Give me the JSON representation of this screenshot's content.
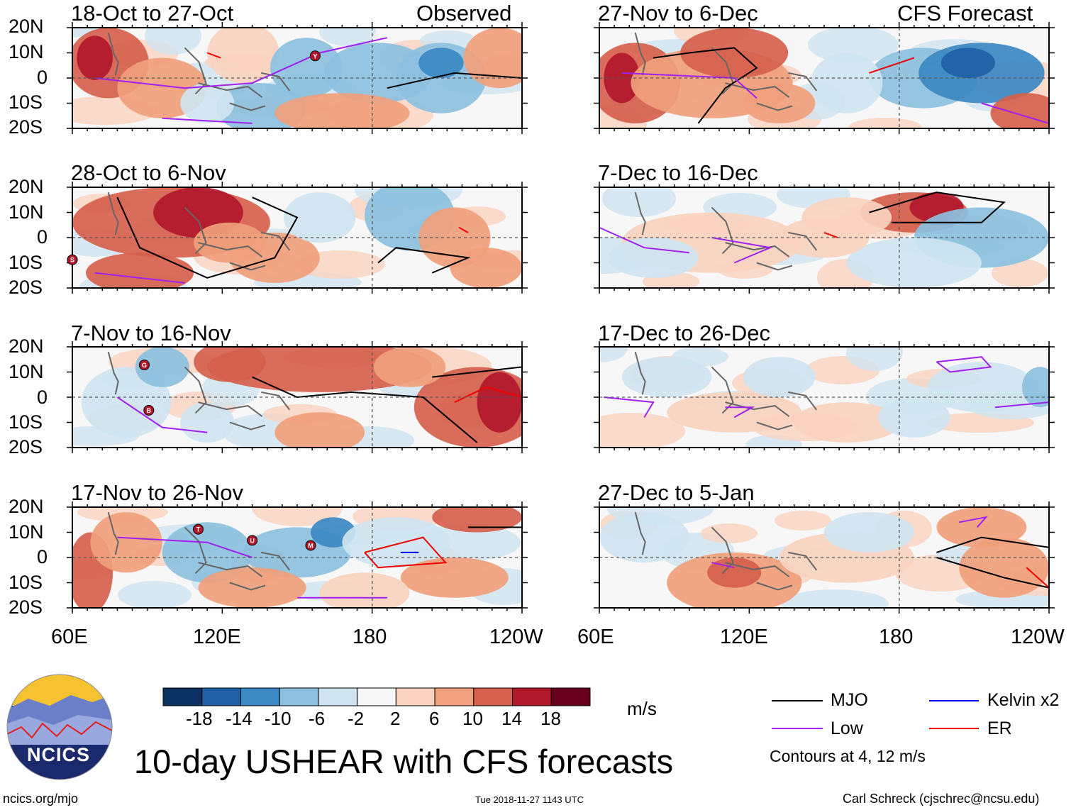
{
  "title": "10-day USHEAR with CFS forecasts",
  "observed_label": "Observed",
  "forecast_label": "CFS Forecast",
  "units": "m/s",
  "contour_note": "Contours at 4, 12 m/s",
  "footer": {
    "left": "ncics.org/mjo",
    "center": "Tue 2018-11-27 1143 UTC",
    "right": "Carl Schreck (cjschrec@ncsu.edu)",
    "logo_text": "NCICS"
  },
  "colors": {
    "mjo": "#000000",
    "low": "#a020f0",
    "kelvin": "#0000ee",
    "er": "#ee0000",
    "coast": "#666666"
  },
  "chart_data": {
    "type": "heatmap",
    "variable": "USHEAR",
    "x_ticks": [
      "60E",
      "120E",
      "180",
      "120W"
    ],
    "y_ticks": [
      "20N",
      "10N",
      "0",
      "10S",
      "20S"
    ],
    "xlim": [
      "60E",
      "120W"
    ],
    "ylim": [
      "20S",
      "20N"
    ],
    "colorbar": {
      "labels": [
        "-18",
        "-14",
        "-10",
        "-6",
        "-2",
        "2",
        "6",
        "10",
        "14",
        "18"
      ],
      "colors": [
        "#0b3262",
        "#1f5fa6",
        "#3c88c2",
        "#8cc0de",
        "#cfe4f0",
        "#f7f7f7",
        "#f9d2bf",
        "#f0a07c",
        "#d6604d",
        "#b2182b",
        "#67001f"
      ]
    },
    "legend": [
      {
        "name": "MJO",
        "color": "#000000"
      },
      {
        "name": "Kelvin x2",
        "color": "#0000ee"
      },
      {
        "name": "Low",
        "color": "#a020f0"
      },
      {
        "name": "ER",
        "color": "#ee0000"
      }
    ],
    "panels": {
      "observed": [
        {
          "title": "18-Oct to 27-Oct",
          "storms": [
            "Y"
          ]
        },
        {
          "title": "28-Oct to 6-Nov",
          "storms": [
            "S"
          ]
        },
        {
          "title": "7-Nov to 16-Nov",
          "storms": [
            "G",
            "B"
          ]
        },
        {
          "title": "17-Nov to 26-Nov",
          "storms": [
            "T",
            "U",
            "M"
          ]
        }
      ],
      "forecast": [
        {
          "title": "27-Nov to 6-Dec",
          "storms": []
        },
        {
          "title": "7-Dec to 16-Dec",
          "storms": []
        },
        {
          "title": "17-Dec to 26-Dec",
          "storms": []
        },
        {
          "title": "27-Dec to 5-Jan",
          "storms": []
        }
      ]
    }
  }
}
